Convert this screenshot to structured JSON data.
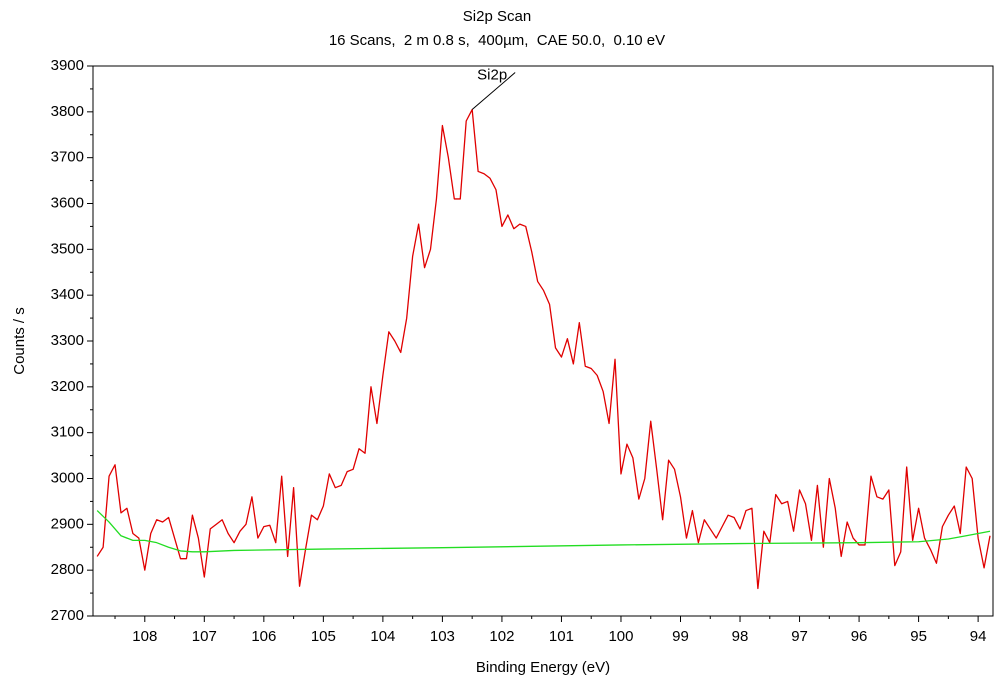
{
  "chart_data": {
    "type": "line",
    "title": "Si2p Scan",
    "subtitle": "16 Scans,  2 m 0.8 s,  400µm,  CAE 50.0,  0.10 eV",
    "x_label": "Binding Energy (eV)",
    "y_label": "Counts / s",
    "xlim": [
      108.87,
      93.75
    ],
    "ylim": [
      2700,
      3900
    ],
    "xticks": [
      108,
      107,
      106,
      105,
      104,
      103,
      102,
      101,
      100,
      99,
      98,
      97,
      96,
      95,
      94
    ],
    "yticks": [
      2700,
      2800,
      2900,
      3000,
      3100,
      3200,
      3300,
      3400,
      3500,
      3600,
      3700,
      3800,
      3900
    ],
    "annotations": [
      {
        "text": "Si2p",
        "x": 102.5,
        "y": 3805
      }
    ],
    "series": [
      {
        "color": "#e00000",
        "x": [
          108.8,
          108.7,
          108.6,
          108.5,
          108.4,
          108.3,
          108.2,
          108.1,
          108.0,
          107.9,
          107.8,
          107.7,
          107.6,
          107.5,
          107.4,
          107.3,
          107.2,
          107.1,
          107.0,
          106.9,
          106.8,
          106.7,
          106.6,
          106.5,
          106.4,
          106.3,
          106.2,
          106.1,
          106.0,
          105.9,
          105.8,
          105.7,
          105.6,
          105.5,
          105.4,
          105.3,
          105.2,
          105.1,
          105.0,
          104.9,
          104.8,
          104.7,
          104.6,
          104.5,
          104.4,
          104.3,
          104.2,
          104.1,
          104.0,
          103.9,
          103.8,
          103.7,
          103.6,
          103.5,
          103.4,
          103.3,
          103.2,
          103.1,
          103.0,
          102.9,
          102.8,
          102.7,
          102.6,
          102.5,
          102.4,
          102.3,
          102.2,
          102.1,
          102.0,
          101.9,
          101.8,
          101.7,
          101.6,
          101.5,
          101.4,
          101.3,
          101.2,
          101.1,
          101.0,
          100.9,
          100.8,
          100.7,
          100.6,
          100.5,
          100.4,
          100.3,
          100.2,
          100.1,
          100.0,
          99.9,
          99.8,
          99.7,
          99.6,
          99.5,
          99.4,
          99.3,
          99.2,
          99.1,
          99.0,
          98.9,
          98.8,
          98.7,
          98.6,
          98.5,
          98.4,
          98.3,
          98.2,
          98.1,
          98.0,
          97.9,
          97.8,
          97.7,
          97.6,
          97.5,
          97.4,
          97.3,
          97.2,
          97.1,
          97.0,
          96.9,
          96.8,
          96.7,
          96.6,
          96.5,
          96.4,
          96.3,
          96.2,
          96.1,
          96.0,
          95.9,
          95.8,
          95.7,
          95.6,
          95.5,
          95.4,
          95.3,
          95.2,
          95.1,
          95.0,
          94.9,
          94.8,
          94.7,
          94.6,
          94.5,
          94.4,
          94.3,
          94.2,
          94.1,
          94.0,
          93.9,
          93.8
        ],
        "values": [
          2830,
          2850,
          3005,
          3030,
          2925,
          2935,
          2880,
          2870,
          2800,
          2880,
          2910,
          2905,
          2915,
          2870,
          2825,
          2825,
          2920,
          2870,
          2785,
          2890,
          2900,
          2910,
          2880,
          2860,
          2885,
          2900,
          2960,
          2870,
          2895,
          2898,
          2860,
          3005,
          2830,
          2980,
          2765,
          2845,
          2920,
          2910,
          2940,
          3010,
          2980,
          2985,
          3015,
          3020,
          3065,
          3055,
          3200,
          3120,
          3225,
          3320,
          3300,
          3275,
          3350,
          3485,
          3555,
          3460,
          3500,
          3610,
          3770,
          3700,
          3610,
          3610,
          3780,
          3805,
          3670,
          3665,
          3655,
          3630,
          3550,
          3575,
          3545,
          3555,
          3550,
          3495,
          3430,
          3410,
          3380,
          3285,
          3265,
          3305,
          3250,
          3340,
          3245,
          3240,
          3225,
          3190,
          3120,
          3260,
          3010,
          3075,
          3045,
          2955,
          3000,
          3125,
          3020,
          2910,
          3040,
          3020,
          2960,
          2870,
          2930,
          2860,
          2910,
          2890,
          2870,
          2895,
          2920,
          2915,
          2890,
          2930,
          2935,
          2760,
          2885,
          2860,
          2965,
          2945,
          2950,
          2885,
          2975,
          2945,
          2865,
          2985,
          2850,
          3000,
          2935,
          2830,
          2905,
          2870,
          2855,
          2855,
          3005,
          2960,
          2955,
          2975,
          2810,
          2840,
          3025,
          2865,
          2935,
          2870,
          2845,
          2815,
          2895,
          2920,
          2940,
          2880,
          3025,
          3000,
          2870,
          2805,
          2875
        ]
      },
      {
        "color": "#22dd22",
        "x": [
          108.8,
          108.6,
          108.4,
          108.2,
          108.0,
          107.8,
          107.6,
          107.4,
          107.2,
          107.0,
          106.5,
          105.0,
          103.0,
          101.5,
          100.0,
          98.0,
          96.0,
          95.0,
          94.5,
          94.2,
          93.8
        ],
        "values": [
          2930,
          2905,
          2875,
          2865,
          2865,
          2860,
          2850,
          2842,
          2840,
          2840,
          2843,
          2846,
          2849,
          2852,
          2855,
          2858,
          2860,
          2862,
          2868,
          2875,
          2885
        ]
      }
    ]
  }
}
